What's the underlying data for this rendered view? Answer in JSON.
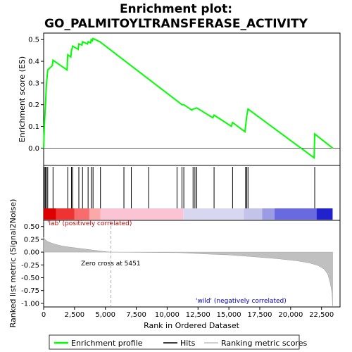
{
  "chart_data": {
    "type": "line",
    "title_line1": "Enrichment plot:",
    "title_line2": "GO_PALMITOYLTRANSFERASE_ACTIVITY",
    "top_panel": {
      "ylabel": "Enrichment score (ES)",
      "ylim": [
        -0.08,
        0.53
      ],
      "yticks": [
        "0.0",
        "0.1",
        "0.2",
        "0.3",
        "0.4",
        "0.5"
      ],
      "ytick_values": [
        0.0,
        0.1,
        0.2,
        0.3,
        0.4,
        0.5
      ],
      "line_color": "#00ff00",
      "es_profile": [
        [
          0,
          0.0
        ],
        [
          60,
          0.11
        ],
        [
          150,
          0.2
        ],
        [
          220,
          0.29
        ],
        [
          330,
          0.36
        ],
        [
          700,
          0.38
        ],
        [
          760,
          0.405
        ],
        [
          1900,
          0.36
        ],
        [
          1950,
          0.43
        ],
        [
          2200,
          0.42
        ],
        [
          2250,
          0.45
        ],
        [
          2350,
          0.47
        ],
        [
          2800,
          0.455
        ],
        [
          2850,
          0.48
        ],
        [
          3100,
          0.475
        ],
        [
          3150,
          0.49
        ],
        [
          3550,
          0.48
        ],
        [
          3600,
          0.49
        ],
        [
          3800,
          0.485
        ],
        [
          3850,
          0.5
        ],
        [
          3950,
          0.495
        ],
        [
          4000,
          0.505
        ],
        [
          4550,
          0.49
        ],
        [
          4600,
          0.488
        ],
        [
          11200,
          0.2
        ],
        [
          11350,
          0.2
        ],
        [
          12000,
          0.175
        ],
        [
          12100,
          0.18
        ],
        [
          12250,
          0.182
        ],
        [
          12400,
          0.185
        ],
        [
          13700,
          0.14
        ],
        [
          13800,
          0.152
        ],
        [
          15200,
          0.1
        ],
        [
          15300,
          0.118
        ],
        [
          16300,
          0.075
        ],
        [
          16350,
          0.1
        ],
        [
          16450,
          0.15
        ],
        [
          16550,
          0.18
        ],
        [
          21900,
          -0.045
        ],
        [
          21950,
          0.065
        ],
        [
          23400,
          0.0
        ]
      ]
    },
    "hits": [
      60,
      150,
      220,
      330,
      760,
      1950,
      2250,
      2350,
      2850,
      3150,
      3600,
      3850,
      4000,
      4600,
      6500,
      7100,
      8500,
      10800,
      11200,
      11350,
      12100,
      12250,
      12400,
      13800,
      15300,
      16350,
      16450,
      16550,
      21950
    ],
    "colorbar": {
      "segments": [
        {
          "from": 0,
          "to": 1000,
          "color": "#dd0000"
        },
        {
          "from": 1000,
          "to": 2500,
          "color": "#ee3333"
        },
        {
          "from": 2500,
          "to": 3700,
          "color": "#f76d6d"
        },
        {
          "from": 3700,
          "to": 4600,
          "color": "#fba8a8"
        },
        {
          "from": 4600,
          "to": 11300,
          "color": "#fbc4d4"
        },
        {
          "from": 11300,
          "to": 16200,
          "color": "#d7d7f0"
        },
        {
          "from": 16200,
          "to": 17700,
          "color": "#c4c4ea"
        },
        {
          "from": 17700,
          "to": 18700,
          "color": "#9c9ce4"
        },
        {
          "from": 18700,
          "to": 22100,
          "color": "#6a6ae0"
        },
        {
          "from": 22100,
          "to": 23400,
          "color": "#2222cc"
        }
      ]
    },
    "bottom_panel": {
      "ylabel": "Ranked list metric (Signal2Noise)",
      "ylim": [
        -1.07,
        0.62
      ],
      "yticks": [
        "0.50",
        "0.25",
        "0.00",
        "-0.25",
        "-0.50",
        "-0.75",
        "-1.00"
      ],
      "ytick_values": [
        0.5,
        0.25,
        0.0,
        -0.25,
        -0.5,
        -0.75,
        -1.0
      ],
      "metric_curve": [
        [
          0,
          0.29
        ],
        [
          100,
          0.25
        ],
        [
          300,
          0.21
        ],
        [
          600,
          0.18
        ],
        [
          1000,
          0.15
        ],
        [
          1500,
          0.12
        ],
        [
          2000,
          0.1
        ],
        [
          3000,
          0.07
        ],
        [
          4000,
          0.04
        ],
        [
          4800,
          0.015
        ],
        [
          5451,
          0.0
        ],
        [
          8000,
          -0.005
        ],
        [
          11000,
          -0.01
        ],
        [
          13000,
          -0.035
        ],
        [
          15000,
          -0.055
        ],
        [
          17000,
          -0.09
        ],
        [
          19000,
          -0.13
        ],
        [
          20500,
          -0.17
        ],
        [
          21500,
          -0.21
        ],
        [
          22200,
          -0.26
        ],
        [
          22700,
          -0.33
        ],
        [
          23000,
          -0.43
        ],
        [
          23200,
          -0.6
        ],
        [
          23350,
          -0.8
        ],
        [
          23400,
          -1.05
        ]
      ],
      "zero_cross_label": "Zero cross at 5451",
      "zero_cross": 5451,
      "pos_label": "'lab' (positively correlated)",
      "neg_label": "'wild' (negatively correlated)",
      "pos_label_color": "#cc0000",
      "neg_label_color": "#0000cc"
    },
    "xlabel": "Rank in Ordered Dataset",
    "xlim": [
      0,
      24000
    ],
    "xticks": [
      "0",
      "2,500",
      "5,000",
      "7,500",
      "10,000",
      "12,500",
      "15,000",
      "17,500",
      "20,000",
      "22,500"
    ],
    "xtick_values": [
      0,
      2500,
      5000,
      7500,
      10000,
      12500,
      15000,
      17500,
      20000,
      22500
    ],
    "legend": [
      {
        "label": "Enrichment profile",
        "color": "#00ff00",
        "kind": "line"
      },
      {
        "label": "Hits",
        "color": "#000000",
        "kind": "line"
      },
      {
        "label": "Ranking metric scores",
        "color": "#c0c0c0",
        "kind": "line"
      }
    ]
  }
}
